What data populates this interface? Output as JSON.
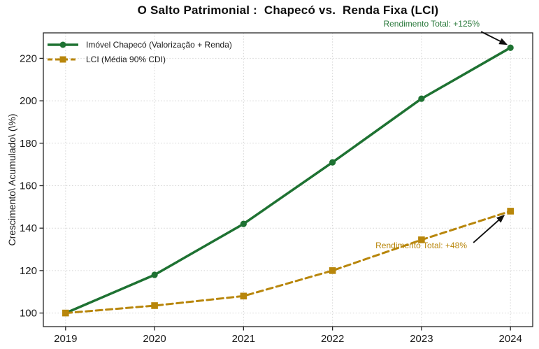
{
  "chart_data": {
    "type": "line",
    "title": "O Salto Patrimonial :  Chapecó vs.  Renda Fixa (LCI)",
    "ylabel": "Crescimento\\ Acumulado\\ (\\%)",
    "xlabel": "",
    "x": [
      2019,
      2020,
      2021,
      2022,
      2023,
      2024
    ],
    "x_tick_labels": [
      "2019",
      "2020",
      "2021",
      "2022",
      "2023",
      "2024"
    ],
    "y_ticks": [
      100,
      120,
      140,
      160,
      180,
      200,
      220
    ],
    "xlim": [
      2018.75,
      2024.25
    ],
    "ylim": [
      93.6,
      232
    ],
    "grid": true,
    "grid_style": "dotted",
    "legend_position": "upper-left",
    "series": [
      {
        "name": "Imóvel Chapecó (Valorização + Renda)",
        "color": "#1e7232",
        "marker": "circle",
        "line_style": "solid",
        "values": [
          100,
          118,
          142,
          171,
          201,
          225
        ]
      },
      {
        "name": "LCI (Média 90% CDI)",
        "color": "#b8860b",
        "marker": "square",
        "line_style": "dashed",
        "values": [
          100,
          103.5,
          108,
          120,
          134.5,
          148
        ]
      }
    ],
    "annotations": [
      {
        "text": "Rendimento Total: +125%",
        "color": "#2b7a3d",
        "target_series": 0,
        "target_x": 2024,
        "target_y": 225
      },
      {
        "text": "Rendimento Total: +48%",
        "color": "#b8860b",
        "target_series": 1,
        "target_x": 2024,
        "target_y": 148
      }
    ],
    "arrow_color": "#111111",
    "axis_color": "#262626",
    "grid_color": "#d4d4d4",
    "tick_label_color": "#1a1a1a"
  }
}
